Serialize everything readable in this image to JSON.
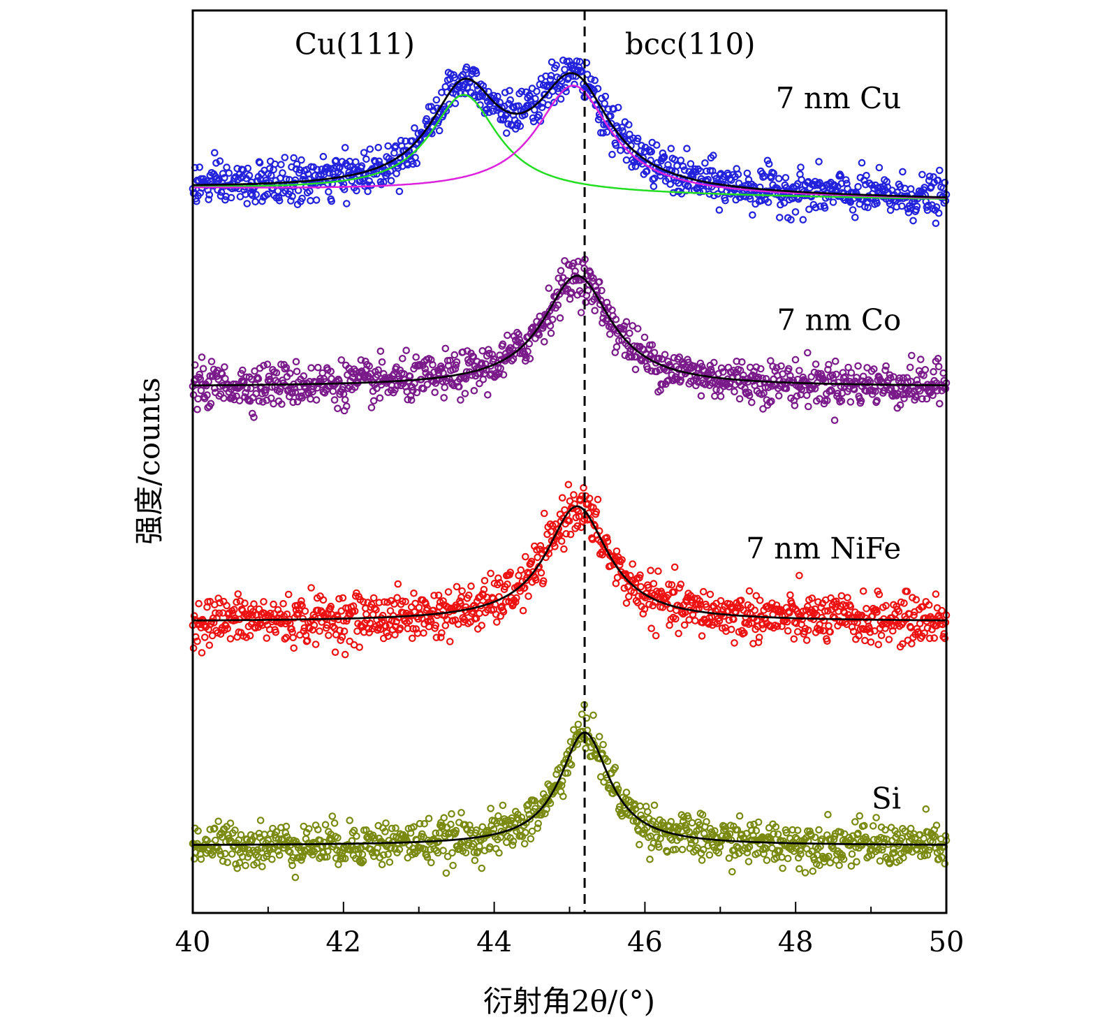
{
  "chart_data": {
    "type": "scatter",
    "title": "",
    "xlabel": "衍射角2θ/(°)",
    "ylabel": "强度/counts",
    "xlim": [
      40,
      50
    ],
    "ylim": [
      0,
      4.15
    ],
    "x_ticks": [
      40,
      42,
      44,
      46,
      48,
      50
    ],
    "x_minor_step": 1,
    "y_ticks_shown": false,
    "grid": false,
    "reference_line": {
      "x": 45.2,
      "style": "dashed",
      "color": "#000000"
    },
    "annotations": [
      {
        "text": "Cu(111)",
        "x": 42.15,
        "y": 3.95
      },
      {
        "text": "bcc(110)",
        "x": 46.6,
        "y": 3.95
      }
    ],
    "series": [
      {
        "name": "7 nm Cu",
        "label_pos": {
          "x": 49.4,
          "y": 3.7
        },
        "marker_color": "#2222dd",
        "baseline": 3.33,
        "baseline_end": 3.28,
        "noise": 0.09,
        "fit_color": "#000000",
        "peaks": [
          {
            "center": 43.6,
            "height": 0.45,
            "hwhm": 0.55
          },
          {
            "center": 45.05,
            "height": 0.5,
            "hwhm": 0.6
          }
        ],
        "components": [
          {
            "name": "Cu(111)",
            "color": "#22dd22",
            "center": 43.6,
            "height": 0.45,
            "hwhm": 0.55
          },
          {
            "name": "bcc(110)",
            "color": "#dd22dd",
            "center": 45.05,
            "height": 0.5,
            "hwhm": 0.6
          }
        ]
      },
      {
        "name": "7 nm Co",
        "label_pos": {
          "x": 49.4,
          "y": 2.68
        },
        "marker_color": "#7a1a8a",
        "baseline": 2.42,
        "baseline_end": 2.42,
        "noise": 0.09,
        "fit_color": "#000000",
        "peaks": [
          {
            "center": 45.1,
            "height": 0.51,
            "hwhm": 0.55
          }
        ],
        "components": []
      },
      {
        "name": "7 nm NiFe",
        "label_pos": {
          "x": 49.4,
          "y": 1.63
        },
        "marker_color": "#ee1111",
        "baseline": 1.34,
        "baseline_end": 1.34,
        "noise": 0.1,
        "fit_color": "#000000",
        "peaks": [
          {
            "center": 45.1,
            "height": 0.53,
            "hwhm": 0.5
          }
        ],
        "components": []
      },
      {
        "name": "Si",
        "label_pos": {
          "x": 49.4,
          "y": 0.48
        },
        "marker_color": "#7a8a10",
        "baseline": 0.31,
        "baseline_end": 0.31,
        "noise": 0.09,
        "fit_color": "#000000",
        "peaks": [
          {
            "center": 45.2,
            "height": 0.52,
            "hwhm": 0.4
          }
        ],
        "components": []
      }
    ]
  }
}
